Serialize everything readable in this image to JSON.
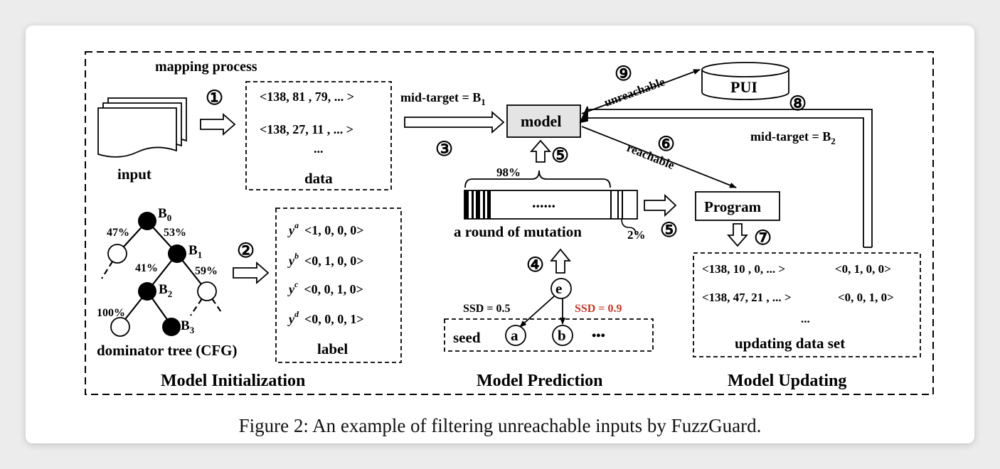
{
  "diagram": {
    "mapping_process": "mapping process",
    "input_label": "input",
    "data_rows": [
      "<138, 81 , 79, ... >",
      "<138, 27, 11 , ... >",
      "..."
    ],
    "data_label": "data",
    "mid_target_1": "mid-target = B",
    "mid_target_1_sub": "1",
    "model": "model",
    "pui": "PUI",
    "unreachable": "unreachable",
    "reachable": "reachable",
    "mid_target_2": "mid-target = B",
    "mid_target_2_sub": "2",
    "program": "Program",
    "pct_98": "98%",
    "pct_2": "2%",
    "mutation_dots": "......",
    "round_of_mutation": "a round of mutation",
    "ssd_a": "SSD = 0.5",
    "ssd_b": "SSD = 0.9",
    "seed_label": "seed",
    "node_e": "e",
    "node_a": "a",
    "node_b": "b",
    "seed_ellipsis": "•••",
    "tree": {
      "b0": "B",
      "b0_sub": "0",
      "b1": "B",
      "b1_sub": "1",
      "b2": "B",
      "b2_sub": "2",
      "b3": "B",
      "b3_sub": "3",
      "p47": "47%",
      "p53": "53%",
      "p41": "41%",
      "p59": "59%",
      "p100": "100%"
    },
    "tree_caption": "dominator tree (CFG)",
    "label_rows": [
      {
        "y": "y",
        "sup": "a",
        "vec": "<1, 0, 0, 0>"
      },
      {
        "y": "y",
        "sup": "b",
        "vec": "<0, 1, 0, 0>"
      },
      {
        "y": "y",
        "sup": "c",
        "vec": "<0, 0, 1, 0>"
      },
      {
        "y": "y",
        "sup": "d",
        "vec": "<0, 0, 0, 1>"
      }
    ],
    "label_caption": "label",
    "update_rows": [
      {
        "input": "<138, 10 ,  0, ... >",
        "label": "<0, 1, 0, 0>"
      },
      {
        "input": "<138, 47, 21 , ... >",
        "label": "<0, 0, 1, 0>"
      },
      {
        "input": "...",
        "label": ""
      }
    ],
    "update_caption": "updating data set",
    "steps": [
      "①",
      "②",
      "③",
      "④",
      "⑤",
      "⑤",
      "⑥",
      "⑦",
      "⑧",
      "⑨"
    ],
    "section_init": "Model Initialization",
    "section_pred": "Model Prediction",
    "section_upd": "Model Updating"
  },
  "caption": "Figure 2: An example of filtering unreachable inputs by FuzzGuard.",
  "colors": {
    "highlight_red": "#c0392b",
    "model_fill": "#e4e4e4"
  }
}
